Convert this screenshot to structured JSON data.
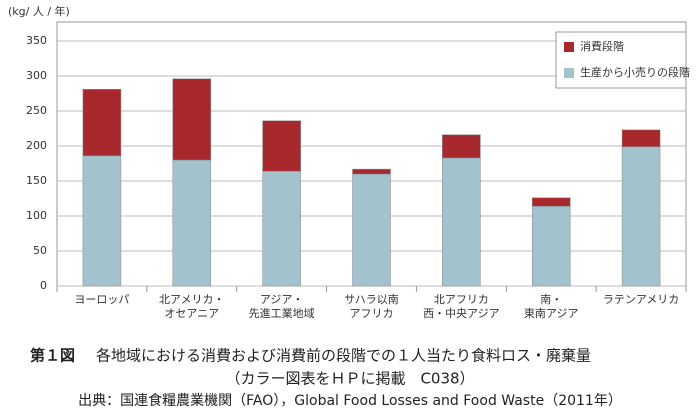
{
  "chart_data": {
    "type": "stacked_bar",
    "y_label": "(kg/ 人 / 年)",
    "categories": [
      [
        "ヨーロッパ"
      ],
      [
        "北アメリカ・",
        "オセアニア"
      ],
      [
        "アジア・",
        "先進工業地域"
      ],
      [
        "サハラ以南",
        "アフリカ"
      ],
      [
        "北アフリカ",
        "西・中央アジア"
      ],
      [
        "南・",
        "東南アジア"
      ],
      [
        "ラテンアメリカ"
      ]
    ],
    "series": [
      {
        "name": "生産から小売りの段階",
        "color": "#a2c2ce",
        "values": [
          186,
          180,
          164,
          160,
          183,
          114,
          199
        ]
      },
      {
        "name": "消費段階",
        "color": "#a8292d",
        "values": [
          95,
          116,
          72,
          7,
          33,
          12,
          24
        ]
      }
    ],
    "ylim": [
      0,
      350
    ],
    "yticks": [
      0,
      50,
      100,
      150,
      200,
      250,
      300,
      350
    ],
    "grid": true,
    "legend": "upper right"
  },
  "caption": {
    "label": "第１図",
    "title": "各地域における消費および消費前の段階での１人当たり食料ロス・廃棄量",
    "note": "（カラー図表をＨＰに掲載　C038）",
    "source": "出典：国連食糧農業機関（FAO），Global Food Losses and Food Waste（2011年）"
  }
}
